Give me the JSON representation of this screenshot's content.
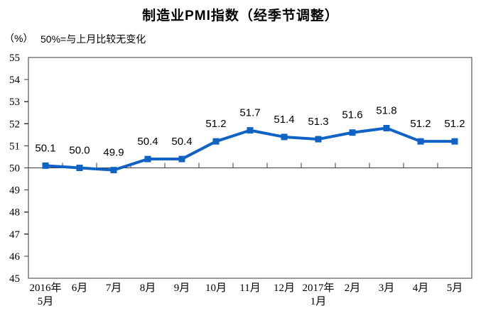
{
  "title": "制造业PMI指数（经季节调整）",
  "unit_label": "（%）",
  "note": "50%=与上月比较无变化",
  "colors": {
    "line": "#1063C5",
    "axis": "#3A3A3A",
    "text": "#000000",
    "background": "#FFFFFF"
  },
  "chart_data": {
    "type": "line",
    "title": "制造业PMI指数（经季节调整）",
    "subtitle": "50%=与上月比较无变化",
    "ylabel": "（%）",
    "categories": [
      "2016年5月",
      "6月",
      "7月",
      "8月",
      "9月",
      "10月",
      "11月",
      "12月",
      "2017年1月",
      "2月",
      "3月",
      "4月",
      "5月"
    ],
    "category_lines": [
      [
        "2016年",
        "5月"
      ],
      [
        "6月"
      ],
      [
        "7月"
      ],
      [
        "8月"
      ],
      [
        "9月"
      ],
      [
        "10月"
      ],
      [
        "11月"
      ],
      [
        "12月"
      ],
      [
        "2017年",
        "1月"
      ],
      [
        "2月"
      ],
      [
        "3月"
      ],
      [
        "4月"
      ],
      [
        "5月"
      ]
    ],
    "series": [
      {
        "name": "制造业PMI指数",
        "values": [
          50.1,
          50.0,
          49.9,
          50.4,
          50.4,
          51.2,
          51.7,
          51.4,
          51.3,
          51.6,
          51.8,
          51.2,
          51.2
        ]
      }
    ],
    "data_labels": [
      "50.1",
      "50.0",
      "49.9",
      "50.4",
      "50.4",
      "51.2",
      "51.7",
      "51.4",
      "51.3",
      "51.6",
      "51.8",
      "51.2",
      "51.2"
    ],
    "ylim": [
      45,
      55
    ],
    "ytick_step": 1,
    "reference_line": 50,
    "grid": false,
    "legend": "none",
    "marker": "square",
    "line_color": "#1063C5"
  }
}
